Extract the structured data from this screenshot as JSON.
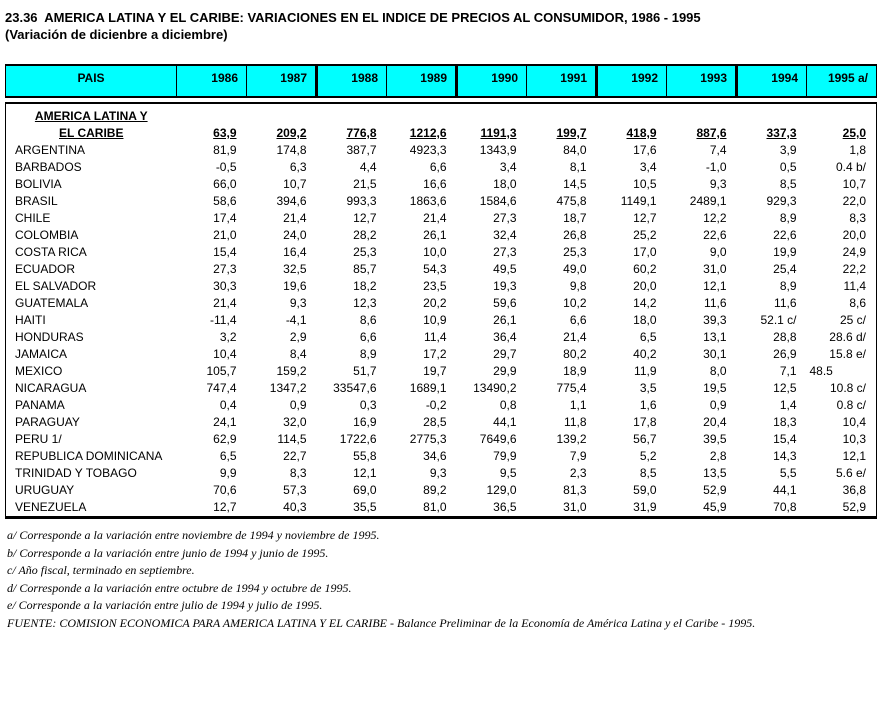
{
  "title": "23.36  AMERICA LATINA Y EL CARIBE: VARIACIONES EN EL INDICE DE PRECIOS AL CONSUMIDOR, 1986 - 1995",
  "subtitle": "(Variación de dicienbre a diciembre)",
  "colors": {
    "header_bg": "#00FFFF",
    "border": "#000000",
    "text": "#000000"
  },
  "table": {
    "columns": [
      "PAIS",
      "1986",
      "1987",
      "1988",
      "1989",
      "1990",
      "1991",
      "1992",
      "1993",
      "1994",
      "1995 a/"
    ],
    "rows": [
      {
        "name": "AMERICA LATINA Y",
        "group": true,
        "values": [
          "",
          "",
          "",
          "",
          "",
          "",
          "",
          "",
          "",
          ""
        ]
      },
      {
        "name": "EL CARIBE",
        "group": true,
        "bold": true,
        "values": [
          "63,9",
          "209,2",
          "776,8",
          "1212,6",
          "1191,3",
          "199,7",
          "418,9",
          "887,6",
          "337,3",
          "25,0"
        ]
      },
      {
        "name": "ARGENTINA",
        "values": [
          "81,9",
          "174,8",
          "387,7",
          "4923,3",
          "1343,9",
          "84,0",
          "17,6",
          "7,4",
          "3,9",
          "1,8"
        ]
      },
      {
        "name": "BARBADOS",
        "values": [
          "-0,5",
          "6,3",
          "4,4",
          "6,6",
          "3,4",
          "8,1",
          "3,4",
          "-1,0",
          "0,5",
          "0.4 b/"
        ]
      },
      {
        "name": "BOLIVIA",
        "values": [
          "66,0",
          "10,7",
          "21,5",
          "16,6",
          "18,0",
          "14,5",
          "10,5",
          "9,3",
          "8,5",
          "10,7"
        ]
      },
      {
        "name": "BRASIL",
        "values": [
          "58,6",
          "394,6",
          "993,3",
          "1863,6",
          "1584,6",
          "475,8",
          "1149,1",
          "2489,1",
          "929,3",
          "22,0"
        ]
      },
      {
        "name": "CHILE",
        "values": [
          "17,4",
          "21,4",
          "12,7",
          "21,4",
          "27,3",
          "18,7",
          "12,7",
          "12,2",
          "8,9",
          "8,3"
        ]
      },
      {
        "name": "COLOMBIA",
        "values": [
          "21,0",
          "24,0",
          "28,2",
          "26,1",
          "32,4",
          "26,8",
          "25,2",
          "22,6",
          "22,6",
          "20,0"
        ]
      },
      {
        "name": "COSTA RICA",
        "values": [
          "15,4",
          "16,4",
          "25,3",
          "10,0",
          "27,3",
          "25,3",
          "17,0",
          "9,0",
          "19,9",
          "24,9"
        ]
      },
      {
        "name": "ECUADOR",
        "values": [
          "27,3",
          "32,5",
          "85,7",
          "54,3",
          "49,5",
          "49,0",
          "60,2",
          "31,0",
          "25,4",
          "22,2"
        ]
      },
      {
        "name": "EL SALVADOR",
        "values": [
          "30,3",
          "19,6",
          "18,2",
          "23,5",
          "19,3",
          "9,8",
          "20,0",
          "12,1",
          "8,9",
          "11,4"
        ]
      },
      {
        "name": "GUATEMALA",
        "values": [
          "21,4",
          "9,3",
          "12,3",
          "20,2",
          "59,6",
          "10,2",
          "14,2",
          "11,6",
          "11,6",
          "8,6"
        ]
      },
      {
        "name": "HAITI",
        "values": [
          "-11,4",
          "-4,1",
          "8,6",
          "10,9",
          "26,1",
          "6,6",
          "18,0",
          "39,3",
          "52.1 c/",
          "25 c/"
        ]
      },
      {
        "name": "HONDURAS",
        "values": [
          "3,2",
          "2,9",
          "6,6",
          "11,4",
          "36,4",
          "21,4",
          "6,5",
          "13,1",
          "28,8",
          "28.6 d/"
        ]
      },
      {
        "name": "JAMAICA",
        "values": [
          "10,4",
          "8,4",
          "8,9",
          "17,2",
          "29,7",
          "80,2",
          "40,2",
          "30,1",
          "26,9",
          "15.8 e/"
        ]
      },
      {
        "name": "MEXICO",
        "left_last": true,
        "values": [
          "105,7",
          "159,2",
          "51,7",
          "19,7",
          "29,9",
          "18,9",
          "11,9",
          "8,0",
          "7,1",
          "48.5"
        ]
      },
      {
        "name": "NICARAGUA",
        "values": [
          "747,4",
          "1347,2",
          "33547,6",
          "1689,1",
          "13490,2",
          "775,4",
          "3,5",
          "19,5",
          "12,5",
          "10.8 c/"
        ]
      },
      {
        "name": "PANAMA",
        "values": [
          "0,4",
          "0,9",
          "0,3",
          "-0,2",
          "0,8",
          "1,1",
          "1,6",
          "0,9",
          "1,4",
          "0.8 c/"
        ]
      },
      {
        "name": "PARAGUAY",
        "values": [
          "24,1",
          "32,0",
          "16,9",
          "28,5",
          "44,1",
          "11,8",
          "17,8",
          "20,4",
          "18,3",
          "10,4"
        ]
      },
      {
        "name": "PERU 1/",
        "values": [
          "62,9",
          "114,5",
          "1722,6",
          "2775,3",
          "7649,6",
          "139,2",
          "56,7",
          "39,5",
          "15,4",
          "10,3"
        ]
      },
      {
        "name": "REPUBLICA DOMINICANA",
        "values": [
          "6,5",
          "22,7",
          "55,8",
          "34,6",
          "79,9",
          "7,9",
          "5,2",
          "2,8",
          "14,3",
          "12,1"
        ]
      },
      {
        "name": "TRINIDAD Y TOBAGO",
        "values": [
          "9,9",
          "8,3",
          "12,1",
          "9,3",
          "9,5",
          "2,3",
          "8,5",
          "13,5",
          "5,5",
          "5.6 e/"
        ]
      },
      {
        "name": "URUGUAY",
        "values": [
          "70,6",
          "57,3",
          "69,0",
          "89,2",
          "129,0",
          "81,3",
          "59,0",
          "52,9",
          "44,1",
          "36,8"
        ]
      },
      {
        "name": "VENEZUELA",
        "values": [
          "12,7",
          "40,3",
          "35,5",
          "81,0",
          "36,5",
          "31,0",
          "31,9",
          "45,9",
          "70,8",
          "52,9"
        ]
      }
    ]
  },
  "footnotes": [
    "a/ Corresponde a la variación entre noviembre de 1994 y noviembre de 1995.",
    "b/ Corresponde a la variación entre junio de 1994 y junio de 1995.",
    "c/ Año fiscal, terminado en septiembre.",
    "d/ Corresponde a la variación entre octubre de 1994 y octubre de 1995.",
    "e/ Corresponde a la variación entre julio de 1994 y julio de 1995."
  ],
  "source": "FUENTE: COMISION ECONOMICA PARA AMERICA LATINA Y EL CARIBE - Balance Preliminar de la Economía de América Latina y el Caribe - 1995."
}
